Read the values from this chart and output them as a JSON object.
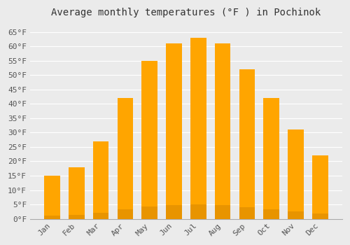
{
  "title": "Average monthly temperatures (°F ) in Pochinok",
  "months": [
    "Jan",
    "Feb",
    "Mar",
    "Apr",
    "May",
    "Jun",
    "Jul",
    "Aug",
    "Sep",
    "Oct",
    "Nov",
    "Dec"
  ],
  "values": [
    15,
    18,
    27,
    42,
    55,
    61,
    63,
    61,
    52,
    42,
    31,
    22
  ],
  "bar_color": "#FFA500",
  "bar_edge_color": "#E89400",
  "ylim": [
    0,
    68
  ],
  "yticks": [
    0,
    5,
    10,
    15,
    20,
    25,
    30,
    35,
    40,
    45,
    50,
    55,
    60,
    65
  ],
  "ytick_labels": [
    "0°F",
    "5°F",
    "10°F",
    "15°F",
    "20°F",
    "25°F",
    "30°F",
    "35°F",
    "40°F",
    "45°F",
    "50°F",
    "55°F",
    "60°F",
    "65°F"
  ],
  "background_color": "#ebebeb",
  "grid_color": "#ffffff",
  "title_fontsize": 10,
  "tick_fontsize": 8,
  "bar_width": 0.65
}
